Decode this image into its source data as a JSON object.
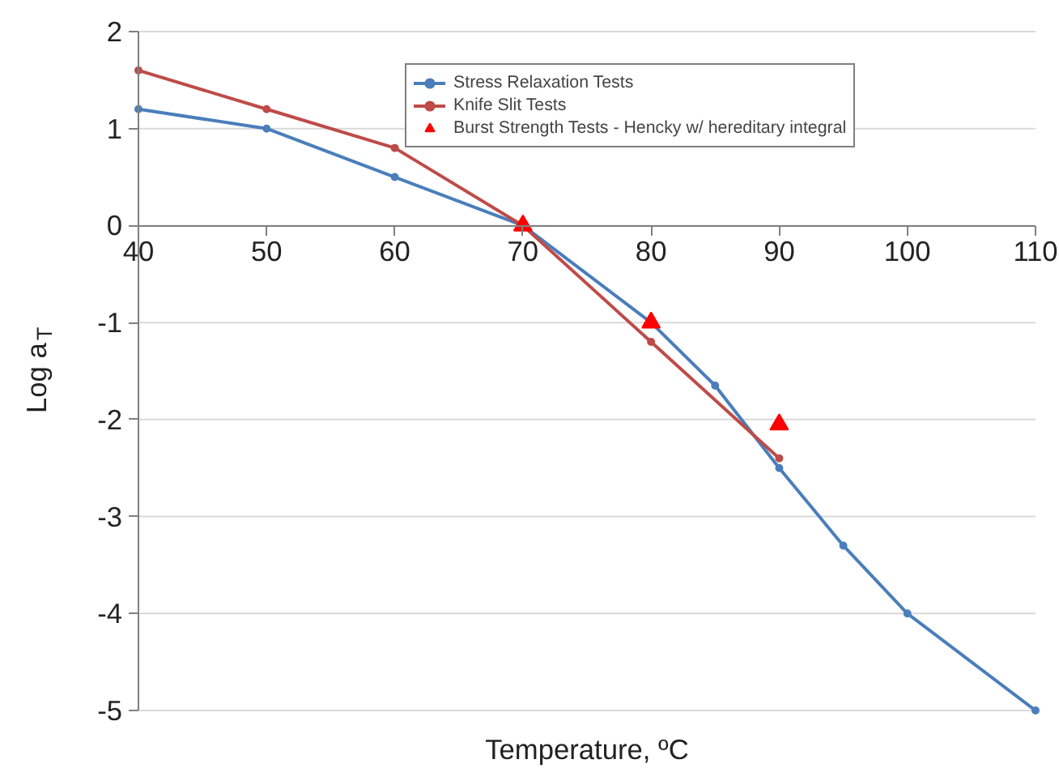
{
  "chart_data": {
    "type": "line",
    "xlabel": "Temperature, ºC",
    "ylabel": "Log a$_{T}$",
    "xlim": [
      40,
      110
    ],
    "ylim": [
      -5,
      2
    ],
    "xticks": [
      40,
      50,
      60,
      70,
      80,
      90,
      100,
      110
    ],
    "yticks": [
      -5,
      -4,
      -3,
      -2,
      -1,
      0,
      1,
      2
    ],
    "grid": "y",
    "legend": "top right",
    "marker": "circle",
    "series": [
      {
        "name": "Stress Relaxation Tests",
        "color": "#4a7ebb",
        "x": [
          40,
          50,
          60,
          70,
          80,
          85,
          90,
          95,
          100,
          110
        ],
        "values": [
          1.2,
          1.0,
          0.5,
          0,
          -1.0,
          -1.65,
          -2.5,
          -3.3,
          -4.0,
          -5.0
        ]
      },
      {
        "name": "Knife Slit Tests",
        "color": "#be4b48",
        "x": [
          40,
          50,
          60,
          70,
          80,
          90
        ],
        "values": [
          1.6,
          1.2,
          0.8,
          0,
          -1.2,
          -2.4
        ]
      },
      {
        "name": "Burst Strength Tests - Hencky w/ hereditary integral",
        "type": "scatter",
        "marker": "triangle",
        "color": "#ff0000",
        "x": [
          70,
          80,
          90
        ],
        "values": [
          0,
          -1.0,
          -2.05
        ]
      }
    ]
  }
}
